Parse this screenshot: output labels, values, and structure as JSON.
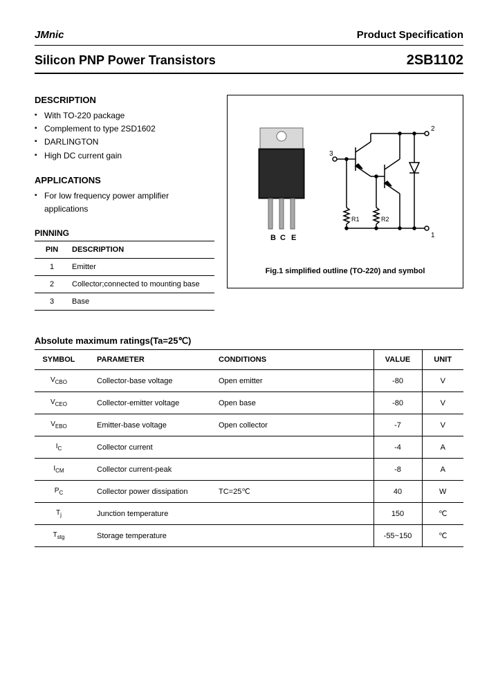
{
  "header": {
    "brand": "JMnic",
    "spec_label": "Product Specification"
  },
  "title": {
    "product_name": "Silicon PNP Power Transistors",
    "part_number": "2SB1102"
  },
  "description": {
    "heading": "DESCRIPTION",
    "items": [
      "With TO-220 package",
      "Complement to type 2SD1602",
      "DARLINGTON",
      "High DC current gain"
    ]
  },
  "applications": {
    "heading": "APPLICATIONS",
    "items": [
      "For low frequency power amplifier applications"
    ]
  },
  "pinning": {
    "heading": "PINNING",
    "columns": [
      "PIN",
      "DESCRIPTION"
    ],
    "rows": [
      [
        "1",
        "Emitter"
      ],
      [
        "2",
        "Collector;connected to mounting base"
      ],
      [
        "3",
        "Base"
      ]
    ]
  },
  "figure": {
    "caption": "Fig.1 simplified outline (TO-220) and symbol",
    "pin_labels": [
      "B",
      "C",
      "E"
    ],
    "circuit": {
      "terminals": {
        "t1": "1",
        "t2": "2",
        "t3": "3"
      },
      "resistors": [
        "R1",
        "R2"
      ]
    },
    "colors": {
      "line": "#000000",
      "body": "#1a1a1a",
      "tab": "#d0d0d0"
    }
  },
  "ratings": {
    "heading": "Absolute maximum ratings(Ta=25℃)",
    "columns": [
      "SYMBOL",
      "PARAMETER",
      "CONDITIONS",
      "VALUE",
      "UNIT"
    ],
    "rows": [
      {
        "sym_main": "V",
        "sym_sub": "CBO",
        "param": "Collector-base voltage",
        "cond": "Open emitter",
        "value": "-80",
        "unit": "V"
      },
      {
        "sym_main": "V",
        "sym_sub": "CEO",
        "param": "Collector-emitter voltage",
        "cond": "Open base",
        "value": "-80",
        "unit": "V"
      },
      {
        "sym_main": "V",
        "sym_sub": "EBO",
        "param": "Emitter-base voltage",
        "cond": "Open collector",
        "value": "-7",
        "unit": "V"
      },
      {
        "sym_main": "I",
        "sym_sub": "C",
        "param": "Collector current",
        "cond": "",
        "value": "-4",
        "unit": "A"
      },
      {
        "sym_main": "I",
        "sym_sub": "CM",
        "param": "Collector current-peak",
        "cond": "",
        "value": "-8",
        "unit": "A"
      },
      {
        "sym_main": "P",
        "sym_sub": "C",
        "param": "Collector power dissipation",
        "cond": "TC=25℃",
        "value": "40",
        "unit": "W"
      },
      {
        "sym_main": "T",
        "sym_sub": "j",
        "param": "Junction temperature",
        "cond": "",
        "value": "150",
        "unit": "℃"
      },
      {
        "sym_main": "T",
        "sym_sub": "stg",
        "param": "Storage temperature",
        "cond": "",
        "value": "-55~150",
        "unit": "℃"
      }
    ]
  }
}
